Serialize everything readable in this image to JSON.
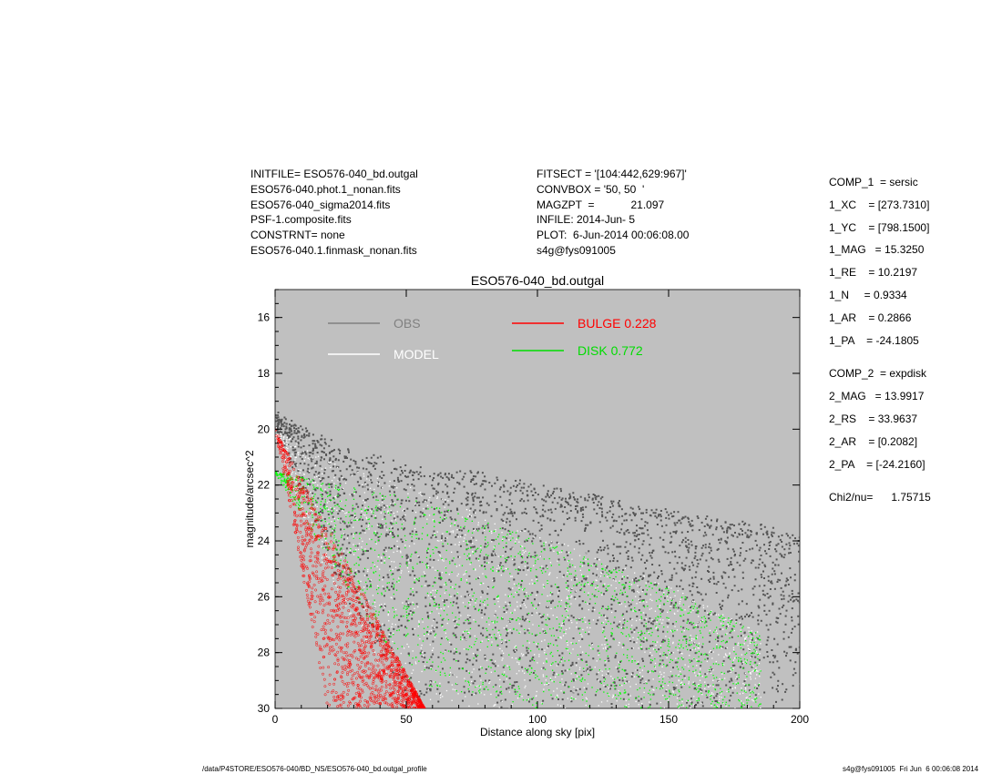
{
  "header_left": [
    "INITFILE= ESO576-040_bd.outgal",
    "ESO576-040.phot.1_nonan.fits",
    "ESO576-040_sigma2014.fits",
    "PSF-1.composite.fits",
    "CONSTRNT= none",
    "ESO576-040.1.finmask_nonan.fits"
  ],
  "header_mid": [
    "FITSECT = '[104:442,629:967]'",
    "CONVBOX = '50, 50  '",
    "MAGZPT  =            21.097",
    "INFILE: 2014-Jun- 5",
    "PLOT:  6-Jun-2014 00:06:08.00",
    "s4g@fys091005"
  ],
  "params": [
    "COMP_1  = sersic",
    "1_XC    = [273.7310]",
    "1_YC    = [798.1500]",
    "1_MAG   = 15.3250",
    "1_RE    = 10.2197",
    "1_N     = 0.9334",
    "1_AR    = 0.2866",
    "1_PA    = -24.1805",
    "COMP_2  = expdisk",
    "2_MAG   = 13.9917",
    "2_RS    = 33.9637",
    "2_AR    = [0.2082]",
    "2_PA    = [-24.2160]",
    "Chi2/nu=      1.75715"
  ],
  "footer_left": "/data/P4STORE/ESO576-040/BD_NS/ESO576-040_bd.outgal_profile",
  "footer_right": "s4g@fys091005  Fri Jun  6 00:06:08 2014",
  "chart_data": {
    "type": "scatter",
    "title": "ESO576-040_bd.outgal",
    "xlabel": "Distance along sky [pix]",
    "ylabel": "magnitude/arcsec^2",
    "xlim": [
      0,
      200
    ],
    "ylim": [
      30,
      15
    ],
    "y_inverted": true,
    "xticks": [
      0,
      50,
      100,
      150,
      200
    ],
    "yticks": [
      16,
      18,
      20,
      22,
      24,
      26,
      28,
      30
    ],
    "background": "#c0c0c0",
    "grid": false,
    "legend_placement": "top",
    "series": [
      {
        "name": "OBS",
        "color": "#555555",
        "legend_color": "#808080",
        "envelope": {
          "x": [
            0,
            10,
            25,
            50,
            75,
            100,
            150,
            200
          ],
          "y_bright": [
            19.7,
            20.2,
            20.9,
            21.6,
            21.8,
            22.3,
            23.2,
            24.0
          ],
          "y_faint": [
            20.2,
            22.5,
            26,
            30,
            30,
            30,
            30,
            30
          ]
        }
      },
      {
        "name": "MODEL",
        "color": "#ffffff",
        "legend_color": "#ffffff",
        "envelope": {
          "x": [
            0,
            10,
            25,
            50,
            100,
            150,
            185
          ],
          "y_bright": [
            19.9,
            20.6,
            21.3,
            22.0,
            23.7,
            25.6,
            27.3
          ],
          "y_faint": [
            20.4,
            23,
            26.5,
            30,
            30,
            30,
            30
          ]
        }
      },
      {
        "name": "DISK",
        "value": "0.772",
        "color": "#00ff00",
        "legend_color": "#00dd00",
        "envelope": {
          "x": [
            0,
            25,
            50,
            100,
            150,
            185
          ],
          "y_bright": [
            21.5,
            22.0,
            22.4,
            23.9,
            25.7,
            27.3
          ],
          "y_faint": [
            21.6,
            25.3,
            29.0,
            30,
            30,
            30
          ]
        }
      },
      {
        "name": "BULGE",
        "value": "0.228",
        "color": "#ff0000",
        "legend_color": "#ff0000",
        "envelope": {
          "x": [
            0,
            20,
            40,
            57
          ],
          "y_bright": [
            20.0,
            23.5,
            27.0,
            30.0
          ],
          "y_faint": [
            20.0,
            30.0,
            30.0,
            30.0
          ]
        }
      }
    ]
  }
}
